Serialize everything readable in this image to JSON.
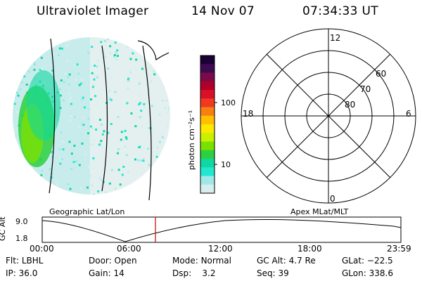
{
  "header": {
    "instrument": "Ultraviolet Imager",
    "date": "14 Nov 07",
    "time": "07:34:33 UT"
  },
  "colorbar": {
    "unit_label": "photon cm⁻²s⁻¹",
    "tick_labels": [
      "100",
      "10"
    ],
    "colors": [
      "#1a0033",
      "#3d0a52",
      "#7a0a4a",
      "#b0002a",
      "#d8102a",
      "#f03a20",
      "#f88010",
      "#ffc000",
      "#ffe800",
      "#c8f000",
      "#7ae000",
      "#2cd040",
      "#10d8a0",
      "#20e8d0",
      "#a0e8e8",
      "#d8eeee"
    ]
  },
  "polar_plot": {
    "hour_labels": [
      "12",
      "18",
      "6",
      "0"
    ],
    "lat_labels": [
      "60",
      "70",
      "80"
    ]
  },
  "panel_labels": {
    "left": "Geographic Lat/Lon",
    "right": "Apex MLat/MLT"
  },
  "altitude_plot": {
    "ylabel": "GC Alt",
    "yticks": [
      "9.0",
      "1.8"
    ],
    "xticks": [
      "00:00",
      "06:00",
      "12:00",
      "18:00",
      "23:59"
    ],
    "marker_time": "07:34"
  },
  "status": {
    "row1": [
      {
        "label": "Flt:",
        "value": "LBHL"
      },
      {
        "label": "Door:",
        "value": "Open"
      },
      {
        "label": "Mode:",
        "value": "Normal"
      },
      {
        "label": "GC Alt:",
        "value": "4.7 Re"
      },
      {
        "label": "GLat:",
        "value": "−22.5"
      }
    ],
    "row2": [
      {
        "label": "IP:",
        "value": "36.0"
      },
      {
        "label": "Gain:",
        "value": "14"
      },
      {
        "label": "Dsp:",
        "value": "3.2"
      },
      {
        "label": "Seq:",
        "value": "39"
      },
      {
        "label": "GLon:",
        "value": "338.6"
      }
    ]
  }
}
